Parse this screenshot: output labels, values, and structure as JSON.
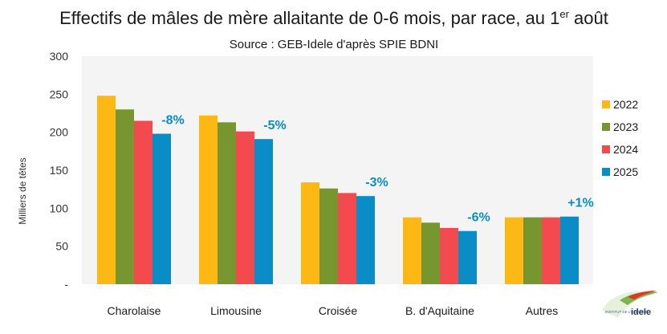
{
  "chart_data": {
    "type": "bar",
    "title": "Effectifs de mâles de mère allaitante de 0-6 mois, par race, au 1",
    "title_superscript": "er",
    "title_suffix": " août",
    "subtitle": "Source : GEB-Idele d'après SPIE BDNI",
    "ylabel": "Milliers de têtes",
    "xlabel": "",
    "ylim": [
      0,
      300
    ],
    "yticks": [
      "-",
      "50",
      "100",
      "150",
      "200",
      "250",
      "300"
    ],
    "categories": [
      "Charolaise",
      "Limousine",
      "Croisée",
      "B. d'Aquitaine",
      "Autres"
    ],
    "series": [
      {
        "name": "2022",
        "color": "#FDB813",
        "values": [
          248,
          222,
          134,
          88,
          88
        ]
      },
      {
        "name": "2023",
        "color": "#77962F",
        "values": [
          230,
          213,
          126,
          81,
          88
        ]
      },
      {
        "name": "2024",
        "color": "#F24A4F",
        "values": [
          215,
          201,
          120,
          74,
          88
        ]
      },
      {
        "name": "2025",
        "color": "#0A8DC6",
        "values": [
          198,
          191,
          116,
          70,
          89
        ]
      }
    ],
    "annotations": [
      "-8%",
      "-5%",
      "-3%",
      "-6%",
      "+1%"
    ],
    "annotation_color": "#0A8DC6",
    "legend_position": "right",
    "grid": false,
    "plot_background": "#f4f4f4"
  },
  "logo": {
    "text_small": "INSTITUT DE L'ÉLEVAGE",
    "text_brand": "idele",
    "icon": "idele-logo-icon"
  }
}
